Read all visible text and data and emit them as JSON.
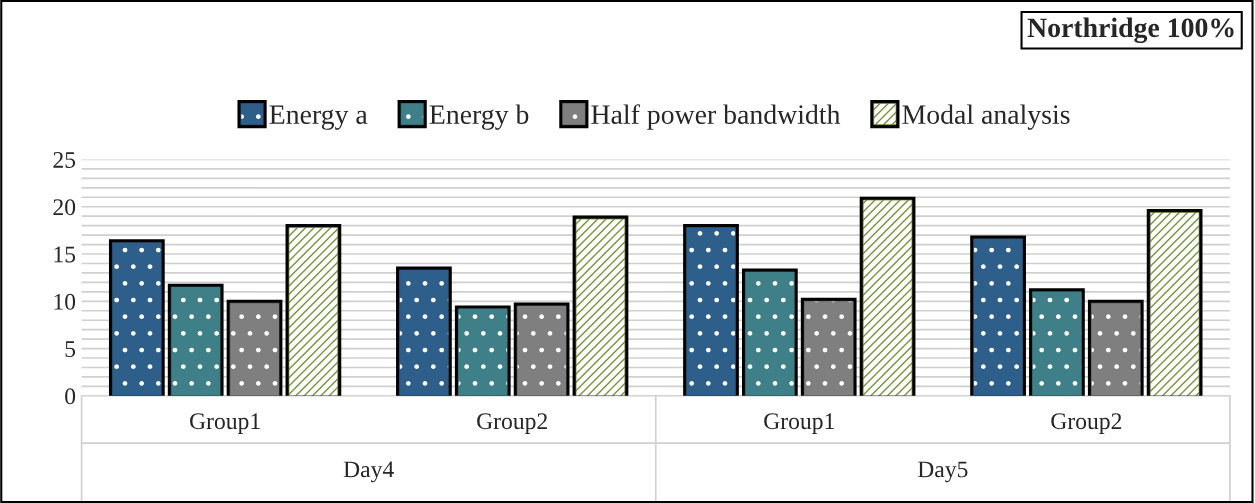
{
  "chart_data": {
    "type": "bar",
    "title": "Northridge 100%",
    "categories": [
      "Group1",
      "Group2",
      "Group1",
      "Group2"
    ],
    "annotations": [
      "Day4",
      "Day5"
    ],
    "series": [
      {
        "name": "Energy a",
        "color": "#2e5f8a",
        "values": [
          16.2,
          13.3,
          17.8,
          16.6
        ]
      },
      {
        "name": "Energy b",
        "color": "#3f7f88",
        "values": [
          11.5,
          9.2,
          13.1,
          11.0
        ]
      },
      {
        "name": "Half power bandwidth",
        "color": "#7f7f7f",
        "values": [
          9.8,
          9.5,
          10.0,
          9.8
        ]
      },
      {
        "name": "Modal analysis",
        "color": "#77933c",
        "values": [
          17.8,
          18.7,
          20.7,
          19.4
        ]
      }
    ],
    "ylim": [
      0,
      25
    ],
    "yticks": [
      0,
      {
        "value": 1,
        "label": null
      },
      {
        "value": 2,
        "label": null
      },
      {
        "value": 3,
        "label": null
      },
      {
        "value": 4,
        "label": null
      },
      5,
      {
        "value": 6,
        "label": null
      },
      {
        "value": 7,
        "label": null
      },
      {
        "value": 8,
        "label": null
      },
      {
        "value": 9,
        "label": null
      },
      10,
      {
        "value": 11,
        "label": null
      },
      {
        "value": 12,
        "label": null
      },
      {
        "value": 13,
        "label": null
      },
      {
        "value": 14,
        "label": null
      },
      15,
      {
        "value": 16,
        "label": null
      },
      {
        "value": 17,
        "label": null
      },
      {
        "value": 18,
        "label": null
      },
      {
        "value": 19,
        "label": null
      },
      20,
      {
        "value": 21,
        "label": null
      },
      {
        "value": 22,
        "label": null
      },
      {
        "value": 23,
        "label": null
      },
      {
        "value": 24,
        "label": null
      },
      25
    ],
    "grid": "y",
    "legend": "top"
  }
}
